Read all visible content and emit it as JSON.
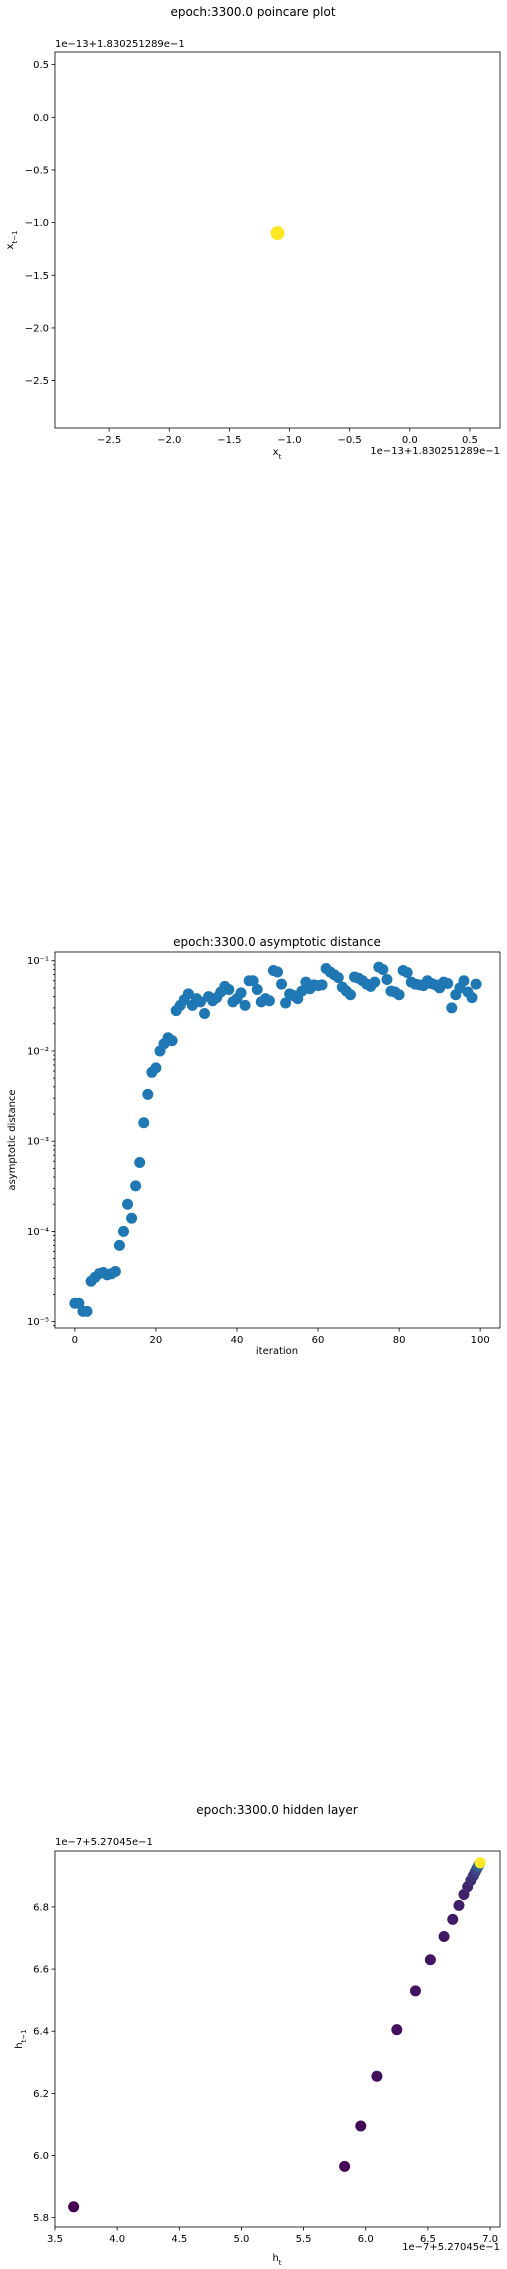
{
  "chart_data": [
    {
      "type": "scatter",
      "title": "epoch:3300.0 poincare plot",
      "xlabel": "x_t",
      "ylabel": "x_{t-1}",
      "x_offset_label": "1e−13+1.830251289e−1",
      "y_offset_label": "1e−13+1.830251289e−1",
      "xlim": [
        -2.95,
        0.75
      ],
      "ylim": [
        -2.95,
        0.62
      ],
      "xticks": [
        -2.5,
        -2.0,
        -1.5,
        -1.0,
        -0.5,
        0.0,
        0.5
      ],
      "xtick_labels": [
        "−2.5",
        "−2.0",
        "−1.5",
        "−1.0",
        "−0.5",
        "0.0",
        "0.5"
      ],
      "yticks": [
        0.5,
        0.0,
        -0.5,
        -1.0,
        -1.5,
        -2.0,
        -2.5
      ],
      "ytick_labels": [
        "0.5",
        "0.0",
        "−0.5",
        "−1.0",
        "−1.5",
        "−2.0",
        "−2.5"
      ],
      "point_color": "#fde725",
      "points": [
        [
          -1.1,
          -1.1
        ]
      ]
    },
    {
      "type": "scatter",
      "title": "epoch:3300.0 asymptotic distance",
      "xlabel": "iteration",
      "ylabel": "asymptotic distance",
      "yscale": "log",
      "xlim": [
        -4.9,
        104.9
      ],
      "ylim": [
        8.5e-06,
        0.125
      ],
      "xticks": [
        0,
        20,
        40,
        60,
        80,
        100
      ],
      "xtick_labels": [
        "0",
        "20",
        "40",
        "60",
        "80",
        "100"
      ],
      "yticks": [
        1e-05,
        0.0001,
        0.001,
        0.01,
        0.1
      ],
      "ytick_labels": [
        "10⁻⁵",
        "10⁻⁴",
        "10⁻³",
        "10⁻²",
        "10⁻¹"
      ],
      "point_color": "#1f77b4",
      "x": [
        0,
        1,
        2,
        3,
        4,
        5,
        6,
        7,
        8,
        9,
        10,
        11,
        12,
        13,
        14,
        15,
        16,
        17,
        18,
        19,
        20,
        21,
        22,
        23,
        24,
        25,
        26,
        27,
        28,
        29,
        30,
        31,
        32,
        33,
        34,
        35,
        36,
        37,
        38,
        39,
        40,
        41,
        42,
        43,
        44,
        45,
        46,
        47,
        48,
        49,
        50,
        51,
        52,
        53,
        54,
        55,
        56,
        57,
        58,
        59,
        60,
        61,
        62,
        63,
        64,
        65,
        66,
        67,
        68,
        69,
        70,
        71,
        72,
        73,
        74,
        75,
        76,
        77,
        78,
        79,
        80,
        81,
        82,
        83,
        84,
        85,
        86,
        87,
        88,
        89,
        90,
        91,
        92,
        93,
        94,
        95,
        96,
        97,
        98,
        99
      ],
      "values": [
        1.6e-05,
        1.6e-05,
        1.3e-05,
        1.3e-05,
        2.8e-05,
        3.1e-05,
        3.4e-05,
        3.5e-05,
        3.3e-05,
        3.4e-05,
        3.6e-05,
        7e-05,
        0.0001,
        0.0002,
        0.00014,
        0.00032,
        0.00058,
        0.0016,
        0.0033,
        0.0058,
        0.0065,
        0.01,
        0.012,
        0.014,
        0.013,
        0.028,
        0.032,
        0.037,
        0.043,
        0.032,
        0.038,
        0.035,
        0.026,
        0.04,
        0.036,
        0.039,
        0.045,
        0.052,
        0.048,
        0.035,
        0.038,
        0.044,
        0.032,
        0.06,
        0.06,
        0.048,
        0.035,
        0.038,
        0.036,
        0.078,
        0.075,
        0.055,
        0.034,
        0.043,
        0.041,
        0.038,
        0.046,
        0.058,
        0.049,
        0.054,
        0.053,
        0.054,
        0.082,
        0.075,
        0.07,
        0.065,
        0.051,
        0.046,
        0.042,
        0.066,
        0.064,
        0.06,
        0.055,
        0.052,
        0.058,
        0.085,
        0.08,
        0.062,
        0.046,
        0.045,
        0.042,
        0.078,
        0.074,
        0.058,
        0.055,
        0.054,
        0.053,
        0.06,
        0.056,
        0.054,
        0.05,
        0.058,
        0.056,
        0.03,
        0.042,
        0.05,
        0.06,
        0.045,
        0.039,
        0.055
      ]
    },
    {
      "type": "scatter",
      "title": "epoch:3300.0 hidden layer",
      "xlabel": "h_t",
      "ylabel": "h_{t-1}",
      "x_offset_label": "1e−7+5.27045e−1",
      "y_offset_label": "1e−7+5.27045e−1",
      "xlim": [
        3.5,
        7.08
      ],
      "ylim": [
        5.77,
        6.98
      ],
      "xticks": [
        3.5,
        4.0,
        4.5,
        5.0,
        5.5,
        6.0,
        6.5,
        7.0
      ],
      "xtick_labels": [
        "3.5",
        "4.0",
        "4.5",
        "5.0",
        "5.5",
        "6.0",
        "6.5",
        "7.0"
      ],
      "yticks": [
        5.8,
        6.0,
        6.2,
        6.4,
        6.6,
        6.8
      ],
      "ytick_labels": [
        "5.8",
        "6.0",
        "6.2",
        "6.4",
        "6.6",
        "6.8"
      ],
      "colormap": [
        "#440154",
        "#3b528b",
        "#21918c",
        "#5ec962",
        "#fde725"
      ],
      "points": [
        [
          3.65,
          5.835,
          0.0
        ],
        [
          5.83,
          5.965,
          0.01
        ],
        [
          5.96,
          6.095,
          0.02
        ],
        [
          6.09,
          6.255,
          0.03
        ],
        [
          6.25,
          6.405,
          0.04
        ],
        [
          6.4,
          6.53,
          0.05
        ],
        [
          6.52,
          6.63,
          0.06
        ],
        [
          6.63,
          6.705,
          0.07
        ],
        [
          6.7,
          6.76,
          0.08
        ],
        [
          6.75,
          6.805,
          0.09
        ],
        [
          6.79,
          6.84,
          0.1
        ],
        [
          6.82,
          6.865,
          0.12
        ],
        [
          6.845,
          6.885,
          0.14
        ],
        [
          6.865,
          6.9,
          0.16
        ],
        [
          6.88,
          6.912,
          0.18
        ],
        [
          6.893,
          6.922,
          0.22
        ],
        [
          6.903,
          6.93,
          0.28
        ],
        [
          6.912,
          6.936,
          0.35
        ],
        [
          6.92,
          6.942,
          1.0
        ]
      ]
    }
  ]
}
